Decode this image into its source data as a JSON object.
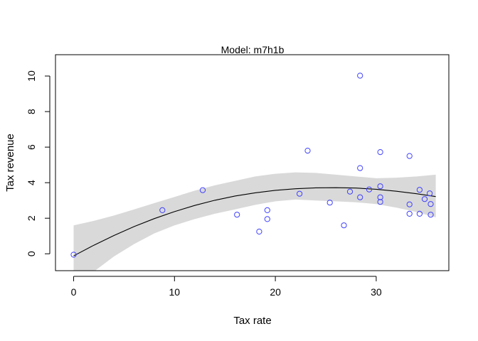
{
  "chart_data": {
    "type": "scatter",
    "title": "Model: m7h1b",
    "xlabel": "Tax rate",
    "ylabel": "Tax revenue",
    "xlim": [
      -1.8,
      37.2
    ],
    "ylim": [
      -0.95,
      11.2
    ],
    "xticks": [
      0,
      10,
      20,
      30
    ],
    "yticks": [
      0,
      2,
      4,
      6,
      8,
      10
    ],
    "grid": false,
    "point_color": "#4040ff",
    "band_color": "#d9d9d9",
    "line_color": "#000000",
    "points": [
      {
        "x": 0.0,
        "y": -0.05
      },
      {
        "x": 8.8,
        "y": 2.45
      },
      {
        "x": 12.8,
        "y": 3.58
      },
      {
        "x": 16.2,
        "y": 2.2
      },
      {
        "x": 18.4,
        "y": 1.25
      },
      {
        "x": 19.2,
        "y": 2.45
      },
      {
        "x": 19.2,
        "y": 1.95
      },
      {
        "x": 22.4,
        "y": 3.38
      },
      {
        "x": 23.2,
        "y": 5.8
      },
      {
        "x": 25.4,
        "y": 2.88
      },
      {
        "x": 26.8,
        "y": 1.6
      },
      {
        "x": 27.4,
        "y": 3.5
      },
      {
        "x": 28.4,
        "y": 10.02
      },
      {
        "x": 28.4,
        "y": 4.82
      },
      {
        "x": 28.4,
        "y": 3.18
      },
      {
        "x": 29.3,
        "y": 3.62
      },
      {
        "x": 30.4,
        "y": 5.72
      },
      {
        "x": 30.4,
        "y": 3.8
      },
      {
        "x": 30.4,
        "y": 3.18
      },
      {
        "x": 30.4,
        "y": 2.92
      },
      {
        "x": 33.3,
        "y": 5.5
      },
      {
        "x": 33.3,
        "y": 2.78
      },
      {
        "x": 33.3,
        "y": 2.25
      },
      {
        "x": 34.3,
        "y": 3.6
      },
      {
        "x": 34.3,
        "y": 2.25
      },
      {
        "x": 34.8,
        "y": 3.08
      },
      {
        "x": 35.3,
        "y": 3.4
      },
      {
        "x": 35.4,
        "y": 2.8
      },
      {
        "x": 35.4,
        "y": 2.2
      }
    ],
    "fit_line": {
      "x": [
        0,
        2,
        4,
        6,
        8,
        10,
        12,
        14,
        16,
        18,
        20,
        22,
        24,
        26,
        28,
        30,
        32,
        34,
        35.9
      ],
      "y": [
        -0.12,
        0.48,
        1.03,
        1.53,
        1.98,
        2.37,
        2.72,
        3.01,
        3.25,
        3.43,
        3.57,
        3.66,
        3.71,
        3.72,
        3.7,
        3.63,
        3.52,
        3.38,
        3.22
      ]
    },
    "band_upper": {
      "x": [
        0,
        2,
        4,
        6,
        8,
        10,
        12,
        14,
        16,
        18,
        20,
        22,
        24,
        26,
        28,
        30,
        32,
        34,
        35.9
      ],
      "y": [
        1.6,
        1.85,
        2.15,
        2.5,
        2.85,
        3.2,
        3.55,
        3.85,
        4.1,
        4.35,
        4.5,
        4.58,
        4.55,
        4.45,
        4.35,
        4.25,
        4.28,
        4.35,
        4.45
      ]
    },
    "band_lower": {
      "x": [
        0,
        2,
        4,
        6,
        8,
        10,
        12,
        14,
        16,
        18,
        20,
        22,
        24,
        26,
        28,
        30,
        32,
        34,
        35.9
      ],
      "y": [
        -1.9,
        -1.0,
        -0.15,
        0.55,
        1.15,
        1.6,
        1.95,
        2.25,
        2.5,
        2.75,
        2.95,
        3.05,
        3.0,
        2.95,
        2.9,
        2.8,
        2.6,
        2.35,
        2.05
      ]
    }
  }
}
